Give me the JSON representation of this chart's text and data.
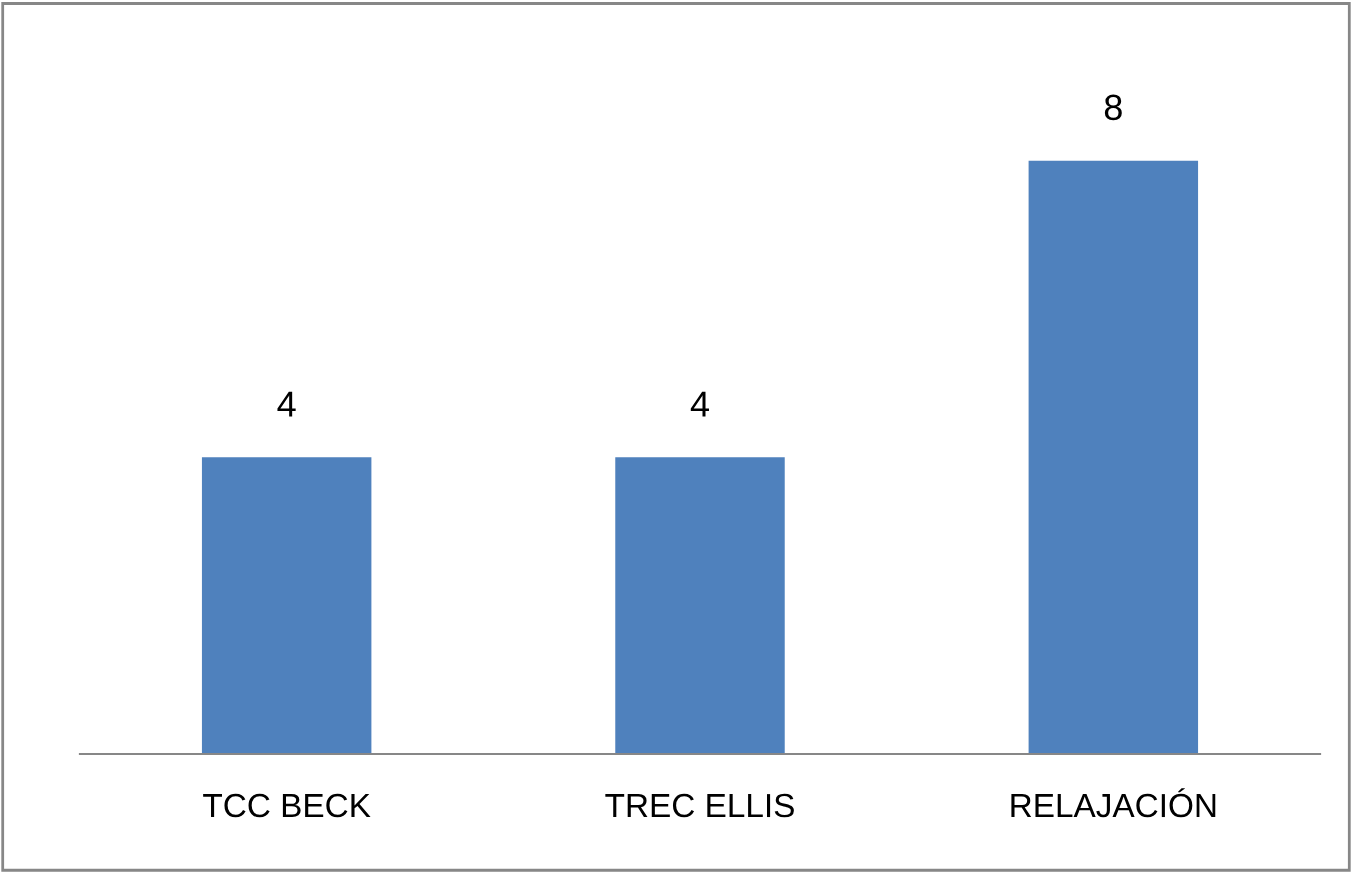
{
  "chart_data": {
    "type": "bar",
    "categories": [
      "TCC BECK",
      "TREC ELLIS",
      "RELAJACIÓN"
    ],
    "values": [
      4,
      4,
      8
    ],
    "color": "#4f81bd",
    "data_labels": true,
    "tick_labels": "x"
  }
}
